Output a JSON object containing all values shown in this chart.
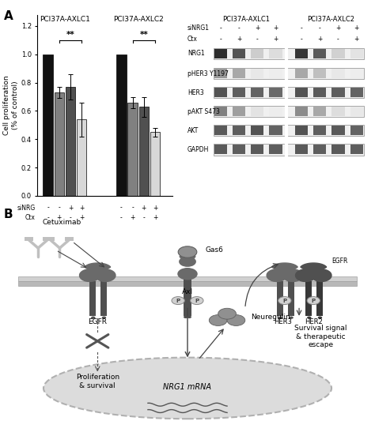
{
  "bar_groups": [
    {
      "label": "PCI37A-AXLC1",
      "bars": [
        {
          "value": 1.0,
          "error": 0.0,
          "color": "#111111"
        },
        {
          "value": 0.73,
          "error": 0.04,
          "color": "#808080"
        },
        {
          "value": 0.77,
          "error": 0.09,
          "color": "#505050"
        },
        {
          "value": 0.54,
          "error": 0.12,
          "color": "#d8d8d8"
        }
      ]
    },
    {
      "label": "PCI37A-AXLC2",
      "bars": [
        {
          "value": 1.0,
          "error": 0.0,
          "color": "#111111"
        },
        {
          "value": 0.66,
          "error": 0.04,
          "color": "#808080"
        },
        {
          "value": 0.63,
          "error": 0.07,
          "color": "#505050"
        },
        {
          "value": 0.45,
          "error": 0.03,
          "color": "#d8d8d8"
        }
      ]
    }
  ],
  "ylabel": "Cell proliferation\n(% of control)",
  "sinrg_labels": [
    "-",
    "-",
    "+",
    "+",
    "-",
    "-",
    "+",
    "+"
  ],
  "ctx_labels": [
    "-",
    "+",
    "-",
    "+",
    "-",
    "+",
    "-",
    "+"
  ],
  "wb_labels": [
    "NRG1",
    "pHER3 Y1197",
    "HER3",
    "pAKT S473",
    "AKT",
    "GAPDH"
  ],
  "wb_sinrg": [
    "-",
    "-",
    "+",
    "+",
    "-",
    "-",
    "+",
    "+"
  ],
  "wb_ctx": [
    "-",
    "+",
    "-",
    "+",
    "-",
    "+",
    "-",
    "+"
  ],
  "band_patterns": [
    [
      [
        0.92,
        0.75,
        0.22,
        0.15
      ],
      [
        0.88,
        0.72,
        0.2,
        0.12
      ]
    ],
    [
      [
        0.45,
        0.38,
        0.1,
        0.08
      ],
      [
        0.38,
        0.28,
        0.1,
        0.08
      ]
    ],
    [
      [
        0.75,
        0.7,
        0.68,
        0.65
      ],
      [
        0.75,
        0.72,
        0.7,
        0.68
      ]
    ],
    [
      [
        0.55,
        0.42,
        0.12,
        0.08
      ],
      [
        0.5,
        0.38,
        0.15,
        0.1
      ]
    ],
    [
      [
        0.72,
        0.7,
        0.75,
        0.68
      ],
      [
        0.75,
        0.7,
        0.72,
        0.68
      ]
    ],
    [
      [
        0.72,
        0.7,
        0.72,
        0.7
      ],
      [
        0.72,
        0.7,
        0.72,
        0.7
      ]
    ]
  ],
  "background_color": "#ffffff",
  "membrane_color": "#b8b8b8",
  "membrane_color2": "#d0d0d0",
  "receptor_color": "#6a6a6a",
  "receptor_color_dark": "#505050",
  "antibody_color": "#b0b0b0",
  "phospho_color": "#909090",
  "nucleus_color": "#dcdcdc",
  "nucleus_edge": "#b0b0b0"
}
